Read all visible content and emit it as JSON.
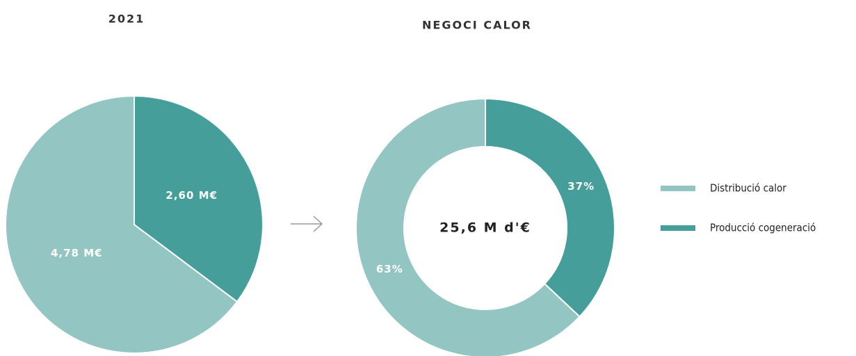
{
  "chart_data": [
    {
      "type": "pie",
      "title": "2021",
      "categories": [
        "Distribució calor",
        "Producció cogeneració"
      ],
      "values": [
        4.78,
        2.6
      ],
      "value_labels": [
        "4,78 M€",
        "2,60 M€"
      ],
      "colors": [
        "#93c5c2",
        "#459e9a"
      ],
      "direction": "counterclockwise"
    },
    {
      "type": "donut",
      "title": "NEGOCI CALOR",
      "center_label": "25,6 M d'€",
      "categories": [
        "Distribució calor",
        "Producció cogeneració"
      ],
      "values": [
        63,
        37
      ],
      "value_labels": [
        "63%",
        "37%"
      ],
      "colors": [
        "#93c5c2",
        "#459e9a"
      ],
      "direction": "counterclockwise",
      "legend": "right"
    }
  ]
}
